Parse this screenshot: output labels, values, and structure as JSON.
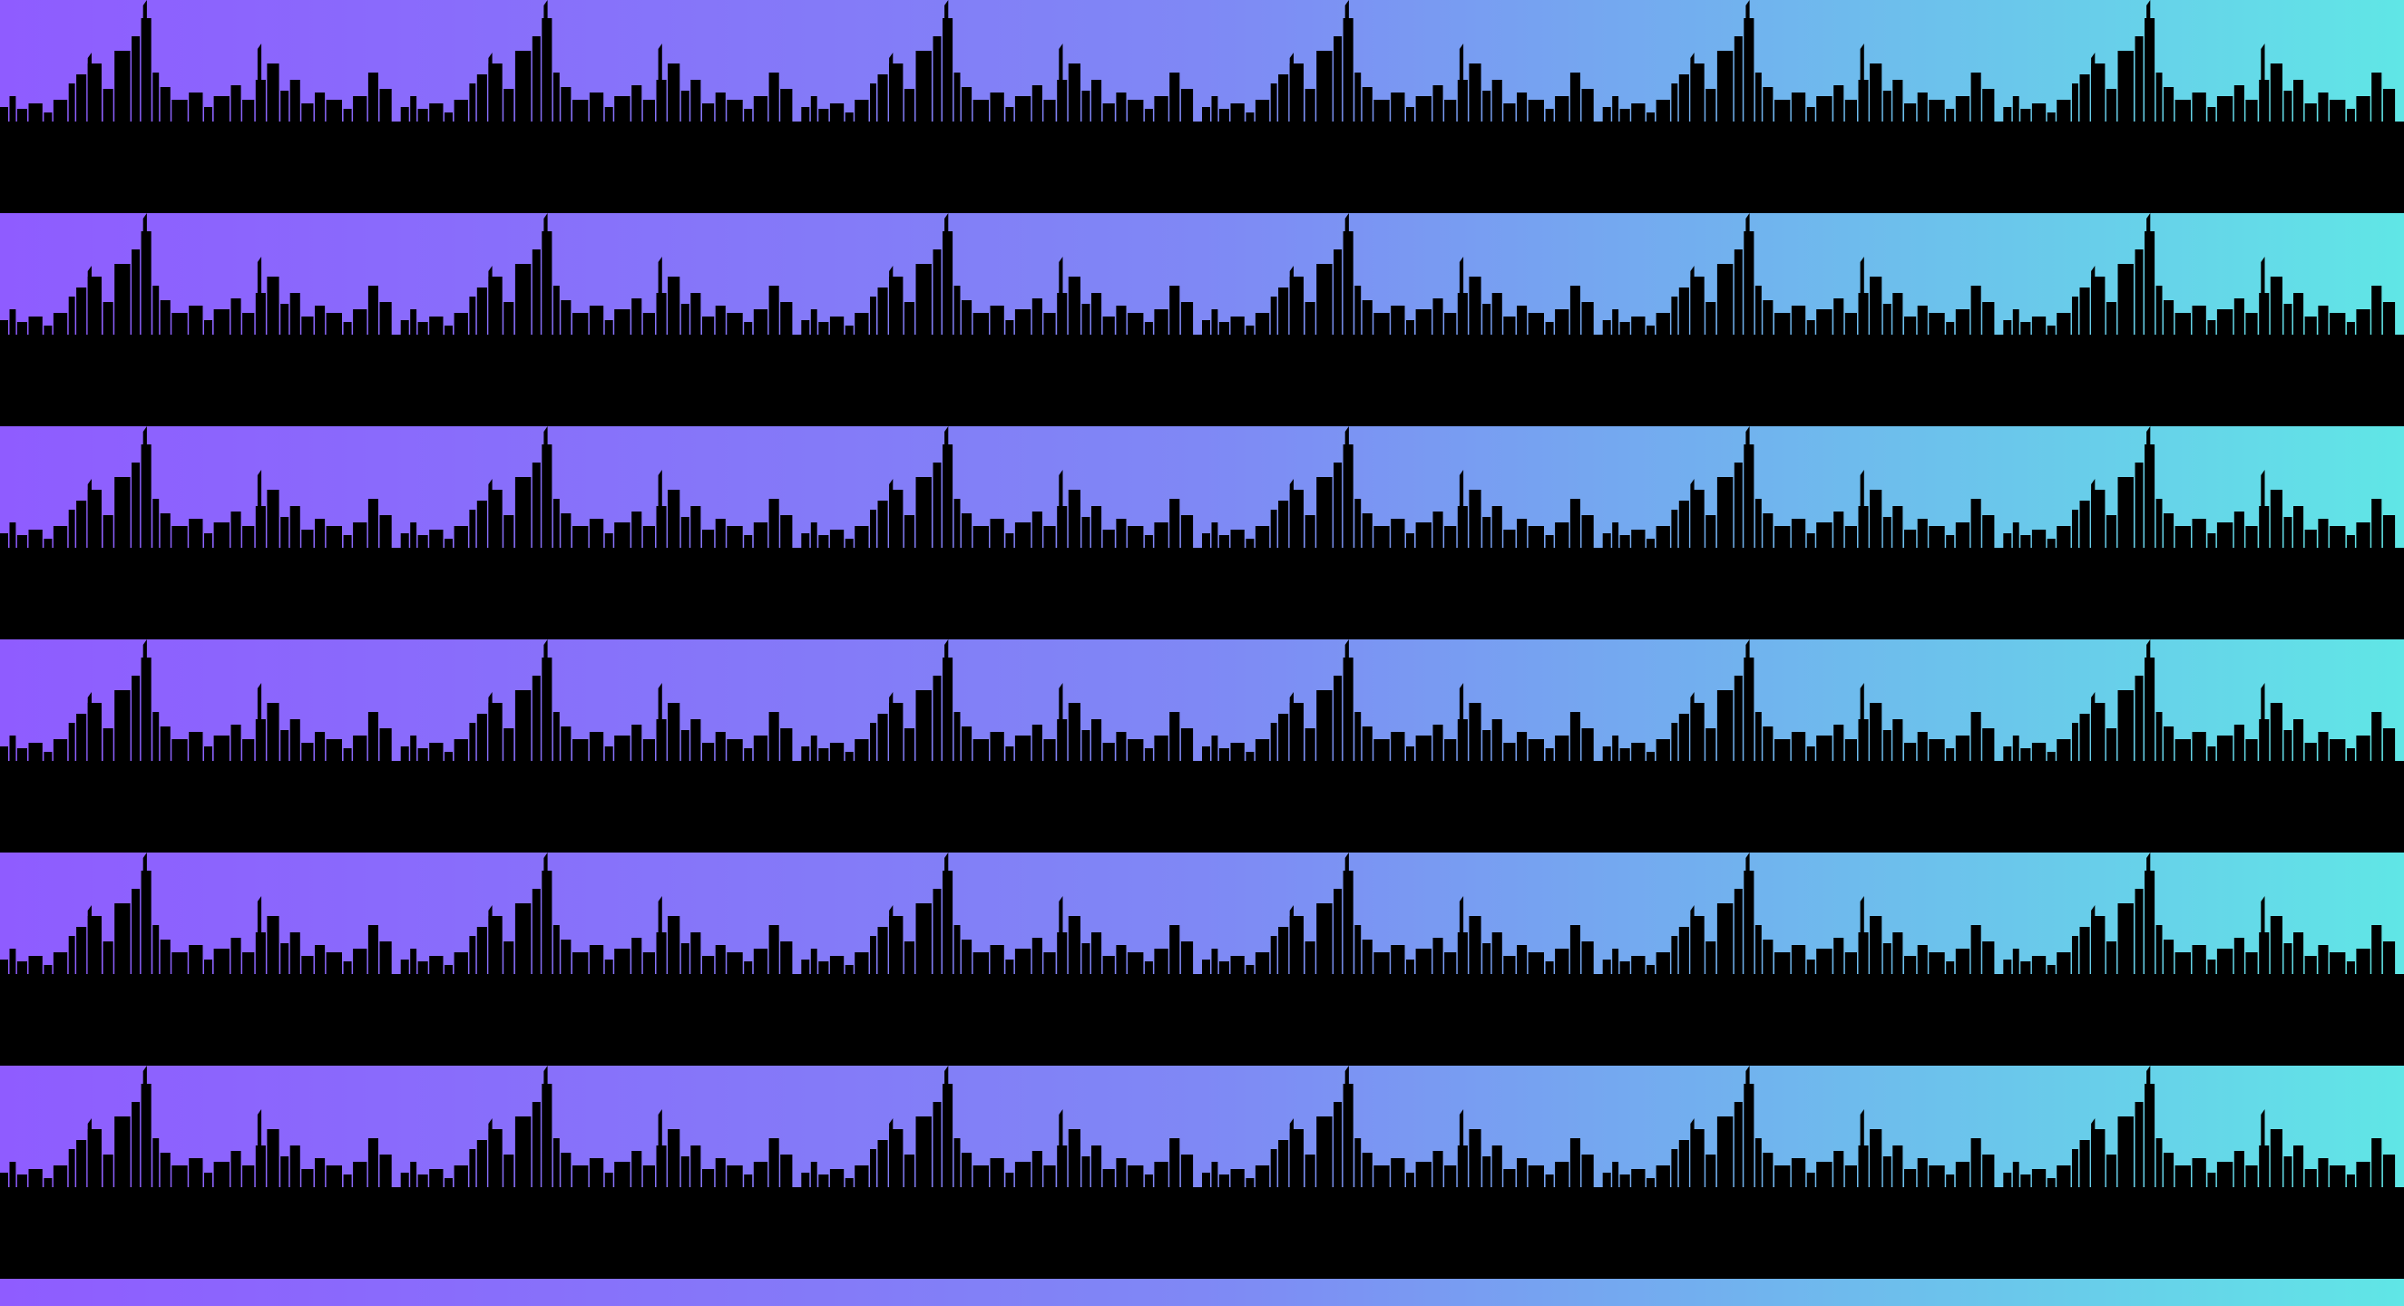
{
  "pattern": {
    "name": "city-skyline-repeating-bands",
    "band_count": 6,
    "tile_repeats": 6,
    "colors": {
      "gradient_left": "#8f5cff",
      "gradient_mid": "#7f88f5",
      "gradient_right": "#60e6e6",
      "silhouette": "#000000"
    }
  }
}
